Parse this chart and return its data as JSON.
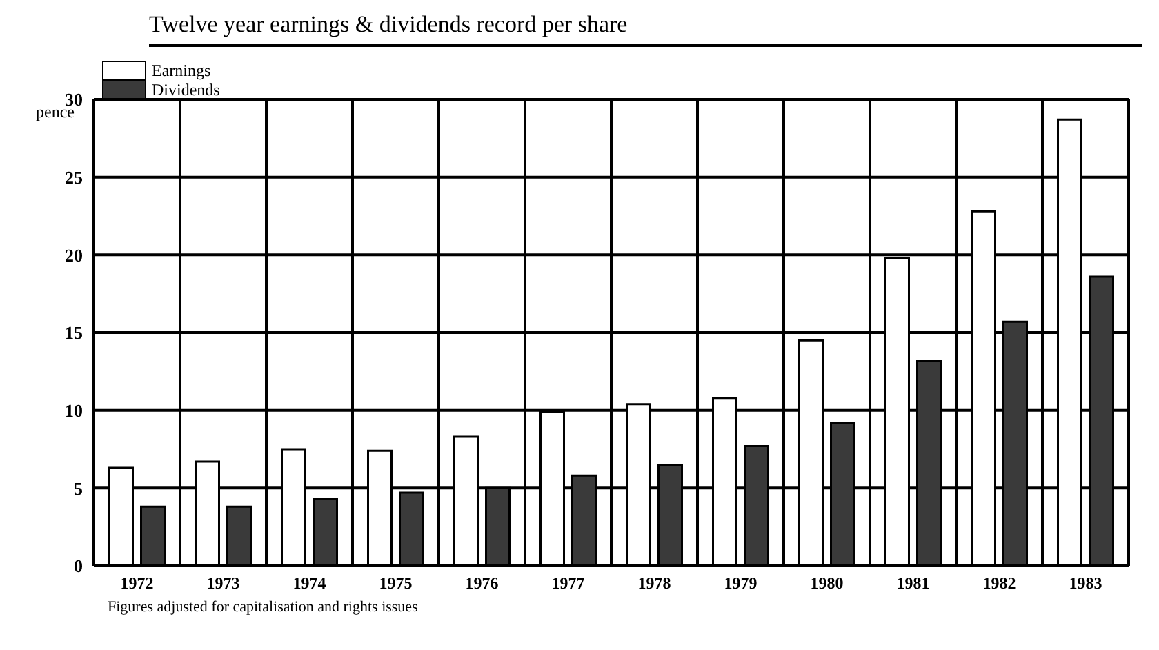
{
  "chart_data": {
    "type": "bar",
    "title": "Twelve year earnings & dividends record per share",
    "ylabel": "pence",
    "categories": [
      "1972",
      "1973",
      "1974",
      "1975",
      "1976",
      "1977",
      "1978",
      "1979",
      "1980",
      "1981",
      "1982",
      "1983"
    ],
    "series": [
      {
        "name": "Earnings",
        "color": "#ffffff",
        "values": [
          6.3,
          6.7,
          7.5,
          7.4,
          8.3,
          9.9,
          10.4,
          10.8,
          14.5,
          19.8,
          22.8,
          28.7
        ]
      },
      {
        "name": "Dividends",
        "color": "#3a3a3a",
        "values": [
          3.8,
          3.8,
          4.3,
          4.7,
          5.0,
          5.8,
          6.5,
          7.7,
          9.2,
          13.2,
          15.7,
          18.6
        ]
      }
    ],
    "ylim": [
      0,
      30
    ],
    "yticks": [
      0,
      5,
      10,
      15,
      20,
      25,
      30
    ],
    "grid": true,
    "legend": "top left",
    "annotations": [
      "Figures adjusted for capitalisation and rights issues"
    ]
  }
}
